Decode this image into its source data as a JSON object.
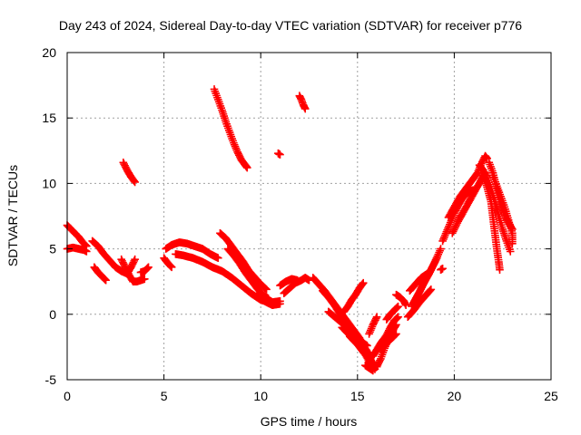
{
  "colors": {
    "series": "#ff0000",
    "axis": "#000000",
    "grid": "#a0a0a0",
    "background": "#ffffff"
  },
  "chart_data": {
    "type": "scatter",
    "title": "Day 243 of 2024, Sidereal Day-to-day VTEC variation (SDTVAR) for receiver p776",
    "xlabel": "GPS time / hours",
    "ylabel": "SDTVAR / TECUs",
    "xlim": [
      0,
      25
    ],
    "ylim": [
      -5,
      20
    ],
    "xticks": [
      0,
      5,
      10,
      15,
      20,
      25
    ],
    "yticks": [
      -5,
      0,
      5,
      10,
      15,
      20
    ],
    "grid": true,
    "marker": "+",
    "series": [
      {
        "name": "SDTVAR",
        "color": "#ff0000",
        "segments": [
          [
            [
              0.0,
              6.8
            ],
            [
              0.2,
              6.5
            ],
            [
              0.4,
              6.2
            ],
            [
              0.6,
              5.9
            ],
            [
              0.8,
              5.5
            ],
            [
              1.0,
              5.2
            ]
          ],
          [
            [
              0.0,
              5.0
            ],
            [
              0.3,
              5.1
            ],
            [
              0.6,
              5.0
            ],
            [
              0.9,
              4.9
            ],
            [
              1.0,
              4.8
            ]
          ],
          [
            [
              1.3,
              5.6
            ],
            [
              1.6,
              5.2
            ],
            [
              1.9,
              4.6
            ],
            [
              2.2,
              4.1
            ],
            [
              2.5,
              3.6
            ],
            [
              2.8,
              3.3
            ],
            [
              3.1,
              3.1
            ],
            [
              3.3,
              3.6
            ],
            [
              3.5,
              4.2
            ]
          ],
          [
            [
              1.4,
              3.6
            ],
            [
              1.6,
              3.2
            ],
            [
              1.8,
              2.9
            ],
            [
              2.0,
              2.6
            ]
          ],
          [
            [
              2.8,
              4.2
            ],
            [
              3.0,
              3.6
            ],
            [
              3.2,
              3.0
            ],
            [
              3.4,
              2.5
            ],
            [
              3.6,
              2.5
            ],
            [
              4.0,
              2.7
            ]
          ],
          [
            [
              2.9,
              11.6
            ],
            [
              3.1,
              11.0
            ],
            [
              3.3,
              10.5
            ],
            [
              3.5,
              10.1
            ]
          ],
          [
            [
              3.8,
              3.2
            ],
            [
              4.0,
              3.3
            ],
            [
              4.2,
              3.6
            ]
          ],
          [
            [
              5.0,
              4.3
            ],
            [
              5.2,
              3.9
            ],
            [
              5.4,
              3.6
            ]
          ],
          [
            [
              5.1,
              5.0
            ],
            [
              5.4,
              5.3
            ],
            [
              5.8,
              5.5
            ],
            [
              6.2,
              5.4
            ],
            [
              6.6,
              5.2
            ],
            [
              7.0,
              5.0
            ],
            [
              7.4,
              4.6
            ],
            [
              7.8,
              4.3
            ]
          ],
          [
            [
              5.6,
              4.6
            ],
            [
              6.0,
              4.5
            ],
            [
              6.5,
              4.3
            ],
            [
              7.0,
              4.0
            ],
            [
              7.5,
              3.6
            ],
            [
              8.0,
              3.3
            ],
            [
              8.5,
              2.8
            ],
            [
              9.0,
              2.2
            ],
            [
              9.5,
              1.6
            ],
            [
              10.0,
              1.1
            ],
            [
              10.5,
              0.9
            ],
            [
              11.0,
              1.0
            ]
          ],
          [
            [
              7.6,
              17.2
            ],
            [
              7.8,
              16.4
            ],
            [
              8.0,
              15.6
            ],
            [
              8.2,
              14.7
            ],
            [
              8.4,
              13.9
            ],
            [
              8.6,
              13.1
            ],
            [
              8.8,
              12.4
            ],
            [
              9.0,
              11.8
            ],
            [
              9.2,
              11.4
            ],
            [
              9.3,
              11.2
            ]
          ],
          [
            [
              7.9,
              6.2
            ],
            [
              8.2,
              5.8
            ],
            [
              8.5,
              5.2
            ],
            [
              8.8,
              4.6
            ],
            [
              9.1,
              4.0
            ],
            [
              9.4,
              3.3
            ],
            [
              9.7,
              2.8
            ],
            [
              10.0,
              2.3
            ],
            [
              10.3,
              1.9
            ]
          ],
          [
            [
              8.3,
              5.0
            ],
            [
              8.6,
              4.5
            ],
            [
              8.9,
              3.9
            ],
            [
              9.2,
              3.2
            ],
            [
              9.5,
              2.6
            ],
            [
              9.8,
              2.0
            ],
            [
              10.1,
              1.5
            ],
            [
              10.4,
              1.2
            ]
          ],
          [
            [
              9.8,
              1.4
            ],
            [
              10.2,
              1.0
            ],
            [
              10.6,
              0.7
            ],
            [
              11.0,
              0.8
            ]
          ],
          [
            [
              10.9,
              12.3
            ],
            [
              11.0,
              12.2
            ]
          ],
          [
            [
              11.2,
              1.6
            ],
            [
              11.5,
              2.0
            ],
            [
              11.8,
              2.4
            ],
            [
              12.1,
              2.6
            ],
            [
              12.3,
              2.8
            ],
            [
              12.5,
              2.6
            ]
          ],
          [
            [
              11.0,
              2.2
            ],
            [
              11.3,
              2.5
            ],
            [
              11.6,
              2.7
            ],
            [
              11.9,
              2.6
            ]
          ],
          [
            [
              12.0,
              16.7
            ],
            [
              12.1,
              16.4
            ],
            [
              12.2,
              16.0
            ],
            [
              12.3,
              15.7
            ]
          ],
          [
            [
              12.7,
              2.8
            ],
            [
              13.0,
              2.3
            ],
            [
              13.3,
              1.8
            ],
            [
              13.6,
              1.2
            ],
            [
              13.9,
              0.6
            ],
            [
              14.2,
              0.0
            ],
            [
              14.5,
              -0.6
            ],
            [
              14.8,
              -1.2
            ],
            [
              15.1,
              -1.8
            ],
            [
              15.4,
              -2.6
            ],
            [
              15.7,
              -3.3
            ]
          ],
          [
            [
              13.2,
              1.8
            ],
            [
              13.5,
              1.3
            ],
            [
              13.8,
              0.7
            ],
            [
              14.1,
              0.0
            ],
            [
              14.4,
              -0.6
            ],
            [
              14.7,
              -1.3
            ],
            [
              15.0,
              -2.0
            ],
            [
              15.3,
              -2.8
            ],
            [
              15.6,
              -3.6
            ],
            [
              15.9,
              -4.2
            ]
          ],
          [
            [
              13.5,
              0.2
            ],
            [
              13.9,
              -0.3
            ],
            [
              14.3,
              -0.8
            ],
            [
              14.7,
              -1.4
            ],
            [
              15.1,
              -2.0
            ],
            [
              15.5,
              -2.4
            ]
          ],
          [
            [
              14.3,
              0.2
            ],
            [
              14.5,
              0.6
            ],
            [
              14.7,
              1.1
            ],
            [
              14.9,
              1.5
            ],
            [
              15.1,
              2.0
            ],
            [
              15.3,
              2.4
            ]
          ],
          [
            [
              14.6,
              -1.7
            ],
            [
              15.0,
              -2.3
            ],
            [
              15.4,
              -3.0
            ],
            [
              15.7,
              -3.6
            ],
            [
              16.0,
              -4.0
            ]
          ],
          [
            [
              14.2,
              -1.0
            ],
            [
              14.6,
              -1.6
            ],
            [
              15.0,
              -2.3
            ],
            [
              15.3,
              -2.9
            ],
            [
              15.7,
              -3.5
            ]
          ],
          [
            [
              15.4,
              -3.9
            ],
            [
              15.6,
              -4.1
            ],
            [
              15.8,
              -4.3
            ]
          ],
          [
            [
              16.0,
              -4.0
            ],
            [
              16.2,
              -3.4
            ],
            [
              16.4,
              -2.6
            ],
            [
              16.6,
              -1.9
            ],
            [
              16.8,
              -1.3
            ],
            [
              17.0,
              -0.8
            ]
          ],
          [
            [
              16.2,
              -2.7
            ],
            [
              16.5,
              -2.2
            ],
            [
              16.8,
              -1.8
            ],
            [
              17.0,
              -1.5
            ]
          ],
          [
            [
              15.8,
              -3.2
            ],
            [
              16.0,
              -2.7
            ],
            [
              16.2,
              -2.2
            ],
            [
              16.5,
              -1.6
            ],
            [
              16.7,
              -1.0
            ],
            [
              16.9,
              -0.5
            ],
            [
              17.1,
              -0.2
            ]
          ],
          [
            [
              15.6,
              -1.5
            ],
            [
              15.8,
              -0.8
            ],
            [
              16.0,
              -0.2
            ]
          ],
          [
            [
              16.5,
              -0.4
            ],
            [
              16.7,
              0.0
            ],
            [
              16.9,
              0.3
            ],
            [
              17.1,
              0.6
            ]
          ],
          [
            [
              17.0,
              1.5
            ],
            [
              17.2,
              1.3
            ],
            [
              17.4,
              1.0
            ],
            [
              17.5,
              0.7
            ]
          ],
          [
            [
              17.6,
              -0.2
            ],
            [
              17.9,
              0.3
            ],
            [
              18.2,
              0.9
            ],
            [
              18.5,
              1.4
            ],
            [
              18.8,
              1.9
            ]
          ],
          [
            [
              17.8,
              0.6
            ],
            [
              18.1,
              1.4
            ],
            [
              18.4,
              2.3
            ],
            [
              18.7,
              3.1
            ],
            [
              19.0,
              4.0
            ],
            [
              19.3,
              5.0
            ]
          ],
          [
            [
              17.9,
              0.9
            ],
            [
              18.2,
              1.7
            ],
            [
              18.5,
              2.6
            ],
            [
              18.8,
              3.4
            ],
            [
              19.1,
              4.3
            ]
          ],
          [
            [
              17.7,
              1.8
            ],
            [
              18.0,
              2.3
            ],
            [
              18.3,
              2.8
            ],
            [
              18.6,
              3.1
            ]
          ],
          [
            [
              19.3,
              3.4
            ],
            [
              19.4,
              3.5
            ]
          ],
          [
            [
              19.4,
              5.6
            ],
            [
              19.6,
              6.3
            ],
            [
              19.8,
              7.0
            ],
            [
              20.0,
              7.7
            ],
            [
              20.2,
              8.3
            ],
            [
              20.4,
              8.8
            ],
            [
              20.6,
              9.2
            ],
            [
              20.8,
              9.4
            ],
            [
              21.0,
              9.5
            ]
          ],
          [
            [
              19.7,
              7.4
            ],
            [
              20.0,
              8.2
            ],
            [
              20.3,
              9.0
            ],
            [
              20.6,
              9.6
            ],
            [
              20.9,
              10.2
            ],
            [
              21.2,
              10.8
            ],
            [
              21.4,
              11.5
            ],
            [
              21.6,
              12.1
            ],
            [
              21.7,
              11.9
            ]
          ],
          [
            [
              19.9,
              6.2
            ],
            [
              20.2,
              7.1
            ],
            [
              20.5,
              7.9
            ],
            [
              20.8,
              8.7
            ],
            [
              21.1,
              9.5
            ],
            [
              21.4,
              10.3
            ],
            [
              21.6,
              10.8
            ]
          ],
          [
            [
              21.3,
              11.4
            ],
            [
              21.5,
              11.0
            ],
            [
              21.7,
              10.4
            ],
            [
              21.9,
              9.6
            ],
            [
              22.1,
              8.6
            ],
            [
              22.3,
              7.5
            ],
            [
              22.5,
              6.5
            ],
            [
              22.7,
              5.6
            ],
            [
              22.9,
              4.8
            ]
          ],
          [
            [
              21.5,
              10.6
            ],
            [
              21.7,
              9.7
            ],
            [
              21.9,
              8.6
            ],
            [
              22.0,
              7.4
            ],
            [
              22.1,
              6.2
            ],
            [
              22.2,
              5.0
            ],
            [
              22.3,
              4.0
            ],
            [
              22.35,
              3.4
            ]
          ],
          [
            [
              21.8,
              11.6
            ],
            [
              22.0,
              10.8
            ],
            [
              22.2,
              9.6
            ],
            [
              22.4,
              8.4
            ],
            [
              22.6,
              7.6
            ],
            [
              22.8,
              7.0
            ],
            [
              23.0,
              6.5
            ]
          ],
          [
            [
              22.0,
              10.6
            ],
            [
              22.2,
              9.8
            ],
            [
              22.4,
              9.0
            ],
            [
              22.6,
              8.2
            ],
            [
              22.8,
              7.2
            ],
            [
              23.0,
              6.2
            ],
            [
              23.0,
              5.4
            ]
          ]
        ]
      }
    ]
  }
}
